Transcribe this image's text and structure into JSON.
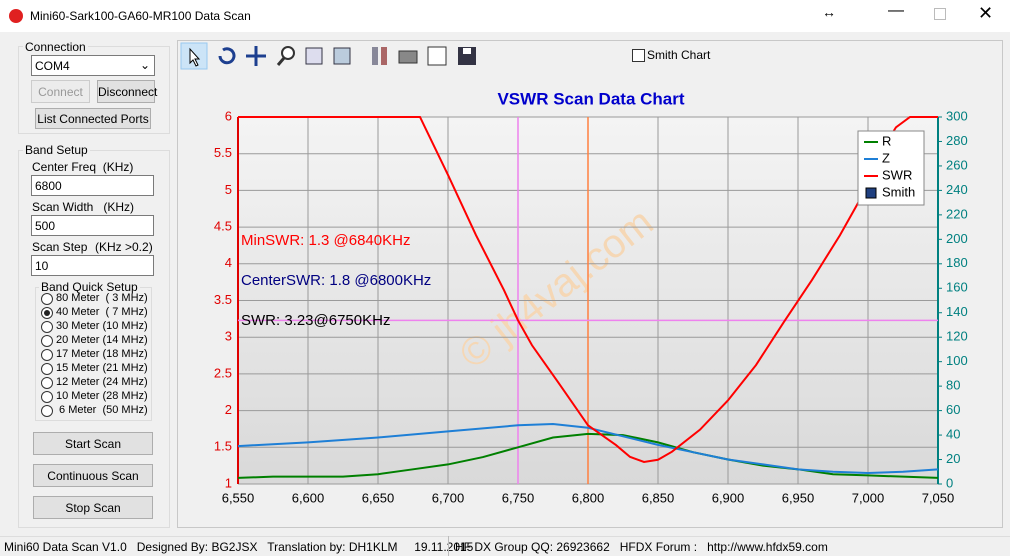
{
  "window": {
    "title": "Mini60-Sark100-GA60-MR100 Data Scan"
  },
  "connection": {
    "label": "Connection",
    "port": "COM4",
    "connect": "Connect",
    "disconnect": "Disconnect",
    "list_ports": "List Connected Ports"
  },
  "band_setup": {
    "label": "Band Setup",
    "center_freq_label": "Center Freq  (KHz)",
    "center_freq": "6800",
    "scan_width_label": "Scan Width   (KHz)",
    "scan_width": "500",
    "scan_step_label": "Scan Step",
    "scan_step_hint": "(KHz >0.2)",
    "scan_step": "10"
  },
  "quick_setup": {
    "label": "Band Quick Setup",
    "options": [
      "80 Meter  ( 3 MHz)",
      "40 Meter  ( 7 MHz)",
      "30 Meter (10 MHz)",
      "20 Meter (14 MHz)",
      "17 Meter (18 MHz)",
      "15 Meter (21 MHz)",
      "12 Meter (24 MHz)",
      "10 Meter (28 MHz)",
      " 6 Meter  (50 MHz)"
    ],
    "selected": 1
  },
  "scan_buttons": {
    "start": "Start Scan",
    "continuous": "Continuous Scan",
    "stop": "Stop Scan"
  },
  "toolbar": {
    "smith_chart": "Smith Chart",
    "smith_checked": false
  },
  "chart_data": {
    "type": "line",
    "title": "VSWR Scan Data Chart",
    "watermark": "© jh4vaj.com",
    "xlim": [
      6550,
      7050
    ],
    "xticks": [
      {
        "value": 6550,
        "label": "6,550"
      },
      {
        "value": 6600,
        "label": "6,600"
      },
      {
        "value": 6650,
        "label": "6,650"
      },
      {
        "value": 6700,
        "label": "6,700"
      },
      {
        "value": 6750,
        "label": "6,750"
      },
      {
        "value": 6800,
        "label": "6,800"
      },
      {
        "value": 6850,
        "label": "6,850"
      },
      {
        "value": 6900,
        "label": "6,900"
      },
      {
        "value": 6950,
        "label": "6,950"
      },
      {
        "value": 7000,
        "label": "7,000"
      },
      {
        "value": 7050,
        "label": "7,050"
      }
    ],
    "ylim": [
      1,
      6
    ],
    "yticks": [
      1,
      1.5,
      2,
      2.5,
      3,
      3.5,
      4,
      4.5,
      5,
      5.5,
      6
    ],
    "y2lim": [
      0,
      300
    ],
    "y2ticks": [
      0,
      20,
      40,
      60,
      80,
      100,
      120,
      140,
      160,
      180,
      200,
      220,
      240,
      260,
      280,
      300
    ],
    "grid": true,
    "series": [
      {
        "name": "R",
        "color": "#008000",
        "axis": "y2",
        "x": [
          6550,
          6575,
          6600,
          6625,
          6650,
          6675,
          6700,
          6725,
          6750,
          6775,
          6800,
          6825,
          6850,
          6875,
          6900,
          6925,
          6950,
          6975,
          7000,
          7025,
          7050
        ],
        "values": [
          5,
          6,
          6,
          6,
          8,
          12,
          16,
          22,
          30,
          38,
          41,
          40,
          34,
          26,
          20,
          15,
          12,
          8,
          7,
          6,
          5
        ]
      },
      {
        "name": "Z",
        "color": "#1e7fd6",
        "axis": "y2",
        "x": [
          6550,
          6600,
          6650,
          6700,
          6750,
          6775,
          6800,
          6825,
          6850,
          6875,
          6900,
          6925,
          6950,
          6975,
          7000,
          7025,
          7050
        ],
        "values": [
          31,
          34,
          38,
          43,
          48,
          49,
          46,
          39,
          32,
          26,
          20,
          16,
          12,
          10,
          9,
          10,
          12
        ]
      },
      {
        "name": "SWR",
        "color": "#ff0000",
        "x": [
          6550,
          6600,
          6650,
          6680,
          6700,
          6720,
          6740,
          6750,
          6760,
          6780,
          6800,
          6820,
          6830,
          6840,
          6850,
          6860,
          6880,
          6900,
          6920,
          6940,
          6960,
          6980,
          7000,
          7010,
          7020,
          7030,
          7050
        ],
        "values": [
          6,
          6,
          6,
          6,
          5.21,
          4.39,
          3.64,
          3.23,
          2.89,
          2.35,
          1.8,
          1.53,
          1.37,
          1.3,
          1.33,
          1.44,
          1.74,
          2.14,
          2.62,
          3.21,
          3.78,
          4.39,
          5.07,
          5.55,
          5.86,
          6,
          6
        ]
      },
      {
        "name": "Smith",
        "color": "#1f3f7f",
        "x": [],
        "values": []
      }
    ],
    "cursors": [
      {
        "x": 6750,
        "color": "#ee82ee"
      },
      {
        "x": 6800,
        "color": "#ff8040"
      },
      {
        "y": 3.23,
        "color": "#ee82ee"
      }
    ],
    "annotations": [
      {
        "text": "MinSWR: 1.3 @6840KHz",
        "color": "#ff0000"
      },
      {
        "text": "CenterSWR: 1.8 @6800KHz",
        "color": "#000080"
      },
      {
        "text": "SWR: 3.23@6750KHz",
        "color": "#000000"
      }
    ],
    "legend": "upper right"
  },
  "status_bar": {
    "left": "Mini60 Data Scan V1.0   Designed By: BG2JSX   Translation by: DH1KLM     19.11.2015",
    "right": "HF DX Group QQ: 26923662   HFDX Forum :   http://www.hfdx59.com"
  }
}
